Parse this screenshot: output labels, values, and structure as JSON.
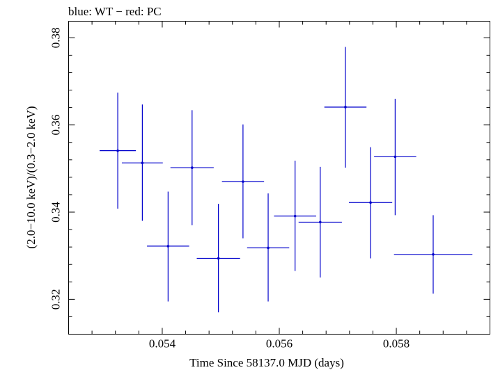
{
  "chart_data": {
    "type": "scatter",
    "title": "blue: WT − red: PC",
    "xlabel": "Time Since 58137.0 MJD (days)",
    "ylabel": "(2.0−10.0 keV)/(0.3−2.0 keV)",
    "xlim": [
      0.0524,
      0.0596
    ],
    "ylim": [
      0.312,
      0.3838
    ],
    "xticks": [
      0.054,
      0.056,
      0.058
    ],
    "xtick_labels": [
      "0.054",
      "0.056",
      "0.058"
    ],
    "yticks": [
      0.32,
      0.34,
      0.36,
      0.38
    ],
    "ytick_labels": [
      "0.32",
      "0.34",
      "0.36",
      "0.38"
    ],
    "grid": false,
    "series": [
      {
        "name": "WT",
        "color": "#0000cc",
        "points": [
          {
            "x": 0.05324,
            "y": 0.3541,
            "xerr": 0.00031,
            "ylo": 0.3408,
            "yhi": 0.3674
          },
          {
            "x": 0.05366,
            "y": 0.3513,
            "xerr": 0.00035,
            "ylo": 0.338,
            "yhi": 0.3647
          },
          {
            "x": 0.0541,
            "y": 0.3322,
            "xerr": 0.00036,
            "ylo": 0.3195,
            "yhi": 0.3447
          },
          {
            "x": 0.05451,
            "y": 0.3502,
            "xerr": 0.00037,
            "ylo": 0.337,
            "yhi": 0.3634
          },
          {
            "x": 0.05496,
            "y": 0.3294,
            "xerr": 0.00037,
            "ylo": 0.317,
            "yhi": 0.3419
          },
          {
            "x": 0.05538,
            "y": 0.347,
            "xerr": 0.00036,
            "ylo": 0.334,
            "yhi": 0.3601
          },
          {
            "x": 0.05581,
            "y": 0.3318,
            "xerr": 0.00036,
            "ylo": 0.3195,
            "yhi": 0.3443
          },
          {
            "x": 0.05627,
            "y": 0.3391,
            "xerr": 0.00036,
            "ylo": 0.3265,
            "yhi": 0.3518
          },
          {
            "x": 0.0567,
            "y": 0.3377,
            "xerr": 0.00037,
            "ylo": 0.325,
            "yhi": 0.3504
          },
          {
            "x": 0.05713,
            "y": 0.3641,
            "xerr": 0.00036,
            "ylo": 0.3502,
            "yhi": 0.3779
          },
          {
            "x": 0.05756,
            "y": 0.3422,
            "xerr": 0.00037,
            "ylo": 0.3294,
            "yhi": 0.3549
          },
          {
            "x": 0.05798,
            "y": 0.3527,
            "xerr": 0.00036,
            "ylo": 0.3393,
            "yhi": 0.366
          },
          {
            "x": 0.05863,
            "y": 0.3303,
            "xerr": 0.00067,
            "ylo": 0.3213,
            "yhi": 0.3393
          }
        ]
      }
    ]
  }
}
